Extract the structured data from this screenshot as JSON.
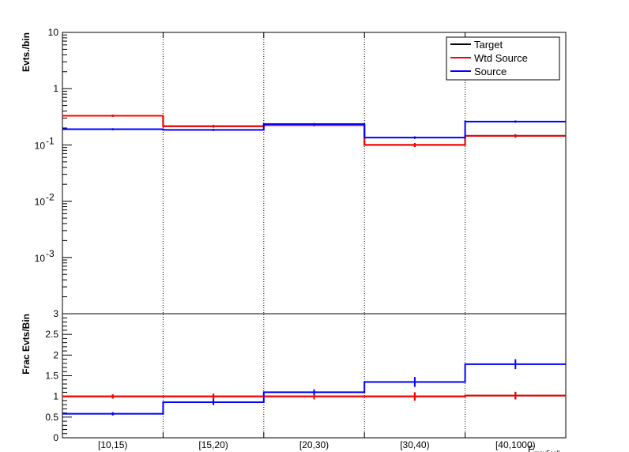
{
  "chart_data": [
    {
      "type": "line",
      "ylabel": "Evts./bin",
      "yscale": "log",
      "ylim": [
        0.0001,
        10
      ],
      "categories": [
        "[10,15)",
        "[15,20)",
        "[20,30)",
        "[30,40)",
        "[40,1000)"
      ],
      "ytick_labels": [
        {
          "value": 10,
          "label": "10"
        },
        {
          "value": 1,
          "label": "1"
        },
        {
          "value": 0.1,
          "base": "10",
          "exp": "-1"
        },
        {
          "value": 0.01,
          "base": "10",
          "exp": "-2"
        },
        {
          "value": 0.001,
          "base": "10",
          "exp": "-3"
        }
      ],
      "legend_position": "top-right",
      "legend": [
        "Target",
        "Wtd Source",
        "Source"
      ],
      "series": [
        {
          "name": "Target",
          "color": "#000000",
          "values": [
            0.33,
            0.215,
            0.225,
            0.1,
            0.145
          ],
          "errors": [
            0.014,
            0.012,
            0.012,
            0.008,
            0.01
          ]
        },
        {
          "name": "Wtd Source",
          "color": "#ff0000",
          "values": [
            0.33,
            0.215,
            0.225,
            0.1,
            0.145
          ],
          "errors": [
            0.014,
            0.012,
            0.012,
            0.008,
            0.01
          ]
        },
        {
          "name": "Source",
          "color": "#0000ff",
          "values": [
            0.19,
            0.185,
            0.235,
            0.135,
            0.26
          ],
          "errors": [
            0.008,
            0.008,
            0.01,
            0.007,
            0.012
          ]
        }
      ]
    },
    {
      "type": "line",
      "ylabel": "Frac Evts/Bin",
      "ylim": [
        0,
        3
      ],
      "yticks": [
        "0",
        "0.5",
        "1",
        "1.5",
        "2",
        "2.5",
        "3"
      ],
      "xlabel": "E",
      "xlabel_sub": "maxFcell",
      "categories": [
        "[10,15)",
        "[15,20)",
        "[20,30)",
        "[30,40)",
        "[40,1000)"
      ],
      "series": [
        {
          "name": "Target",
          "color": "#000000",
          "values": [
            1.0,
            1.0,
            1.0,
            1.0,
            1.02
          ],
          "errors": [
            0.05,
            0.07,
            0.07,
            0.1,
            0.09
          ]
        },
        {
          "name": "Wtd Source",
          "color": "#ff0000",
          "values": [
            1.0,
            1.0,
            1.0,
            1.0,
            1.02
          ],
          "errors": [
            0.05,
            0.07,
            0.07,
            0.1,
            0.09
          ]
        },
        {
          "name": "Source",
          "color": "#0000ff",
          "values": [
            0.58,
            0.86,
            1.1,
            1.35,
            1.78
          ],
          "errors": [
            0.04,
            0.07,
            0.07,
            0.12,
            0.12
          ]
        }
      ]
    }
  ]
}
